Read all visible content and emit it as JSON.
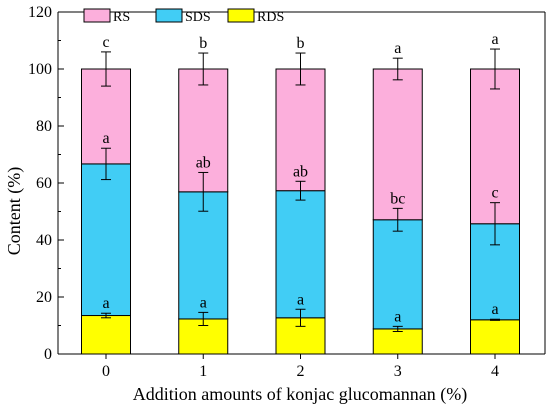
{
  "chart_data": {
    "type": "bar",
    "stacked": true,
    "categories": [
      "0",
      "1",
      "2",
      "3",
      "4"
    ],
    "xlabel": "Addition amounts of konjac glucomannan (%)",
    "ylabel": "Content (%)",
    "ylim": [
      0,
      120
    ],
    "yticks": [
      0,
      20,
      40,
      60,
      80,
      100,
      120
    ],
    "legend_position": "top-left",
    "series": [
      {
        "name": "RDS",
        "color": "#ffff00",
        "values": [
          13.5,
          12.3,
          12.7,
          8.8,
          12.0
        ],
        "errors": [
          0.8,
          2.3,
          3.0,
          0.9,
          0.2
        ],
        "labels": [
          "a",
          "a",
          "a",
          "a",
          "a"
        ]
      },
      {
        "name": "SDS",
        "color": "#41cdf5",
        "values": [
          53.2,
          44.6,
          44.6,
          38.3,
          33.7
        ],
        "errors": [
          5.5,
          6.8,
          3.3,
          4.0,
          7.4
        ],
        "labels": [
          "a",
          "ab",
          "ab",
          "bc",
          "c"
        ]
      },
      {
        "name": "RS",
        "color": "#fcafdc",
        "values": [
          33.3,
          43.1,
          42.7,
          52.9,
          54.3
        ],
        "errors": [
          6.0,
          5.6,
          5.6,
          3.8,
          7.0
        ],
        "labels": [
          "c",
          "b",
          "b",
          "a",
          "a"
        ]
      }
    ],
    "legend_order": [
      "RS",
      "SDS",
      "RDS"
    ]
  }
}
